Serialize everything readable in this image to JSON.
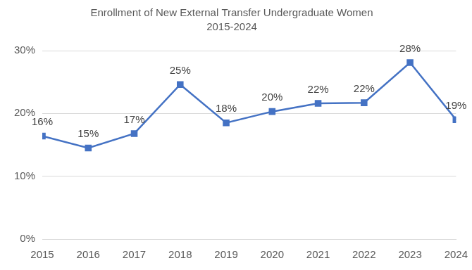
{
  "chart_data": {
    "type": "line",
    "title": "Enrollment of New External Transfer Undergraduate Women",
    "subtitle": "2015-2024",
    "categories": [
      "2015",
      "2016",
      "2017",
      "2018",
      "2019",
      "2020",
      "2021",
      "2022",
      "2023",
      "2024"
    ],
    "values": [
      16.4,
      14.5,
      16.8,
      24.6,
      18.5,
      20.3,
      21.6,
      21.7,
      28.1,
      19.0
    ],
    "value_labels": [
      "16%",
      "15%",
      "17%",
      "25%",
      "18%",
      "20%",
      "22%",
      "22%",
      "28%",
      "19%"
    ],
    "color": "#4472c4",
    "marker": "square",
    "ylim": [
      0,
      30
    ],
    "yticks": [
      {
        "value": 0,
        "label": "0%"
      },
      {
        "value": 10,
        "label": "10%"
      },
      {
        "value": 20,
        "label": "20%"
      },
      {
        "value": 30,
        "label": "30%"
      }
    ],
    "grid": true,
    "data_labels": true
  }
}
